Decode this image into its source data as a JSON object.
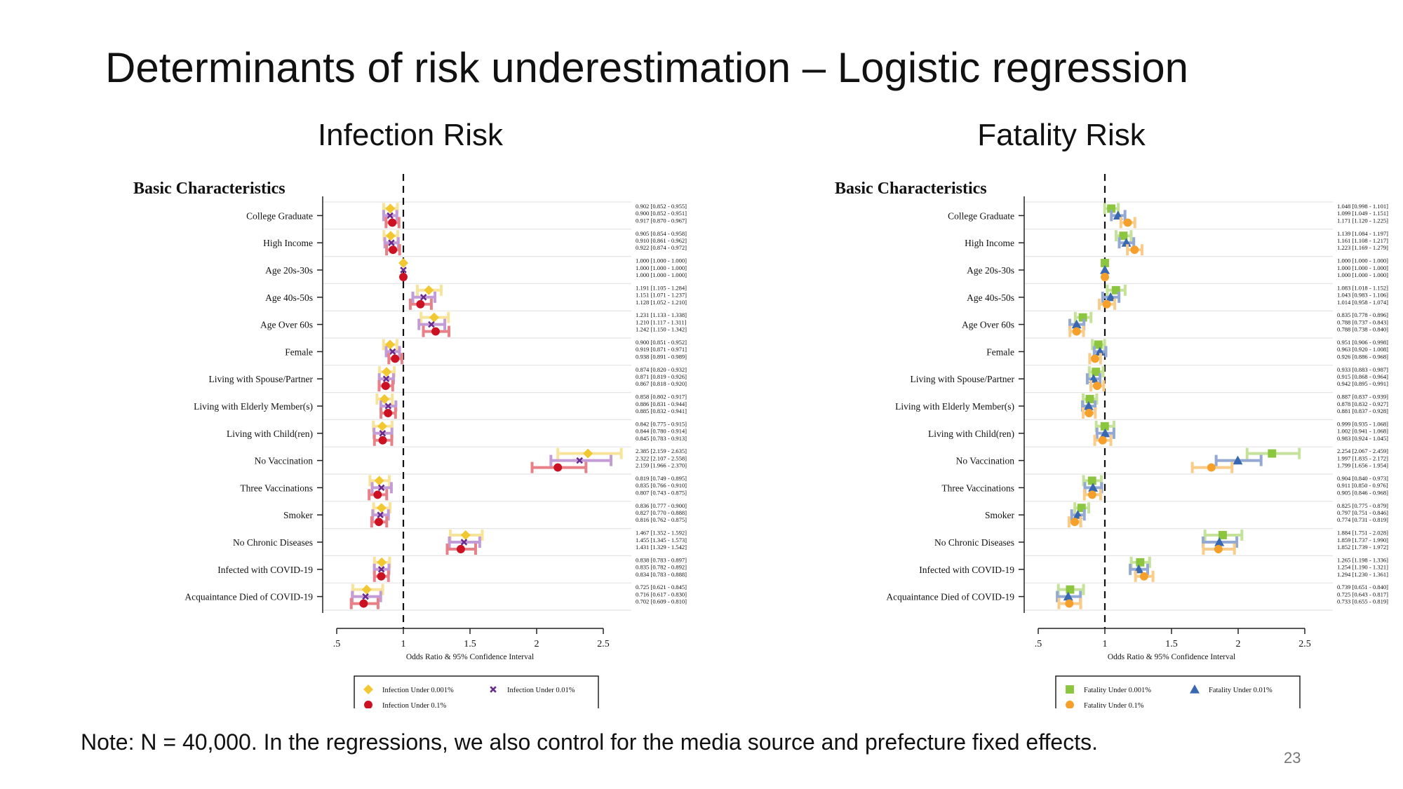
{
  "slide": {
    "title": "Determinants of risk underestimation – Logistic regression",
    "note": "Note: N = 40,000. In the regressions, we also control for the media source and prefecture fixed effects.",
    "page_number": "23"
  },
  "chart_data": [
    {
      "type": "forest",
      "title": "Infection Risk",
      "section_label": "Basic Characteristics",
      "xlabel": "Odds Ratio & 95% Confidence Interval",
      "xlim": [
        0.5,
        2.5
      ],
      "x_ticks": [
        ".5",
        "1",
        "1.5",
        "2",
        "2.5"
      ],
      "x_tick_values": [
        0.5,
        1,
        1.5,
        2,
        2.5
      ],
      "reference_line": 1,
      "legend_position": "bottom",
      "categories": [
        "College Graduate",
        "High Income",
        "Age 20s-30s",
        "Age 40s-50s",
        "Age Over 60s",
        "Female",
        "Living with Spouse/Partner",
        "Living with Elderly Member(s)",
        "Living with Child(ren)",
        "No Vaccination",
        "Three Vaccinations",
        "Smoker",
        "No Chronic Diseases",
        "Infected with COVID-19",
        "Acquaintance Died of COVID-19"
      ],
      "series": [
        {
          "name": "Infection Under 0.001%",
          "marker": "diamond",
          "color": "#f2c832",
          "ci_color": "#f8e39a",
          "or": [
            0.902,
            0.905,
            1.0,
            1.191,
            1.231,
            0.9,
            0.874,
            0.858,
            0.842,
            2.385,
            0.819,
            0.836,
            1.467,
            0.838,
            0.725
          ],
          "lo": [
            0.852,
            0.854,
            1.0,
            1.105,
            1.133,
            0.851,
            0.82,
            0.802,
            0.775,
            2.159,
            0.749,
            0.777,
            1.352,
            0.783,
            0.621
          ],
          "hi": [
            0.955,
            0.958,
            1.0,
            1.284,
            1.338,
            0.952,
            0.932,
            0.917,
            0.915,
            2.635,
            0.895,
            0.9,
            1.592,
            0.897,
            0.845
          ],
          "labels": [
            "0.902  [0.852 - 0.955]",
            "0.905  [0.854 - 0.958]",
            "1.000  [1.000 - 1.000]",
            "1.191  [1.105 - 1.284]",
            "1.231  [1.133 - 1.338]",
            "0.900  [0.851 - 0.952]",
            "0.874  [0.820 - 0.932]",
            "0.858  [0.802 - 0.917]",
            "0.842  [0.775 - 0.915]",
            "2.385  [2.159 - 2.635]",
            "0.819  [0.749 - 0.895]",
            "0.836  [0.777 - 0.900]",
            "1.467  [1.352 - 1.592]",
            "0.838  [0.783 - 0.897]",
            "0.725  [0.621 - 0.845]"
          ]
        },
        {
          "name": "Infection Under 0.01%",
          "marker": "x",
          "color": "#6a2c8c",
          "ci_color": "#c39bd6",
          "or": [
            0.9,
            0.91,
            1.0,
            1.151,
            1.21,
            0.919,
            0.871,
            0.886,
            0.844,
            2.322,
            0.835,
            0.827,
            1.455,
            0.835,
            0.716
          ],
          "lo": [
            0.852,
            0.861,
            1.0,
            1.071,
            1.117,
            0.871,
            0.819,
            0.831,
            0.78,
            2.107,
            0.766,
            0.77,
            1.345,
            0.782,
            0.617
          ],
          "hi": [
            0.951,
            0.962,
            1.0,
            1.237,
            1.311,
            0.971,
            0.926,
            0.944,
            0.914,
            2.558,
            0.91,
            0.888,
            1.573,
            0.892,
            0.83
          ],
          "labels": [
            "0.900  [0.852 - 0.951]",
            "0.910  [0.861 - 0.962]",
            "1.000  [1.000 - 1.000]",
            "1.151  [1.071 - 1.237]",
            "1.210  [1.117 - 1.311]",
            "0.919  [0.871 - 0.971]",
            "0.871  [0.819 - 0.926]",
            "0.886  [0.831 - 0.944]",
            "0.844  [0.780 - 0.914]",
            "2.322  [2.107 - 2.558]",
            "0.835  [0.766 - 0.910]",
            "0.827  [0.770 - 0.888]",
            "1.455  [1.345 - 1.573]",
            "0.835  [0.782 - 0.892]",
            "0.716  [0.617 - 0.830]"
          ]
        },
        {
          "name": "Infection Under 0.1%",
          "marker": "circle",
          "color": "#cc1122",
          "ci_color": "#e88088",
          "or": [
            0.917,
            0.922,
            1.0,
            1.128,
            1.242,
            0.938,
            0.867,
            0.885,
            0.845,
            2.159,
            0.807,
            0.816,
            1.431,
            0.834,
            0.702
          ],
          "lo": [
            0.87,
            0.874,
            1.0,
            1.052,
            1.15,
            0.891,
            0.818,
            0.832,
            0.783,
            1.966,
            0.743,
            0.762,
            1.329,
            0.783,
            0.609
          ],
          "hi": [
            0.967,
            0.972,
            1.0,
            1.21,
            1.342,
            0.989,
            0.92,
            0.941,
            0.913,
            2.37,
            0.875,
            0.875,
            1.542,
            0.888,
            0.81
          ],
          "labels": [
            "0.917  [0.870 - 0.967]",
            "0.922  [0.874 - 0.972]",
            "1.000  [1.000 - 1.000]",
            "1.128  [1.052 - 1.210]",
            "1.242  [1.150 - 1.342]",
            "0.938  [0.891 - 0.989]",
            "0.867  [0.818 - 0.920]",
            "0.885  [0.832 - 0.941]",
            "0.845  [0.783 - 0.913]",
            "2.159  [1.966 - 2.370]",
            "0.807  [0.743 - 0.875]",
            "0.816  [0.762 - 0.875]",
            "1.431  [1.329 - 1.542]",
            "0.834  [0.783 - 0.888]",
            "0.702  [0.609 - 0.810]"
          ]
        }
      ]
    },
    {
      "type": "forest",
      "title": "Fatality Risk",
      "section_label": "Basic Characteristics",
      "xlabel": "Odds Ratio & 95% Confidence Interval",
      "xlim": [
        0.5,
        2.5
      ],
      "x_ticks": [
        ".5",
        "1",
        "1.5",
        "2",
        "2.5"
      ],
      "x_tick_values": [
        0.5,
        1,
        1.5,
        2,
        2.5
      ],
      "reference_line": 1,
      "legend_position": "bottom",
      "categories": [
        "College Graduate",
        "High Income",
        "Age 20s-30s",
        "Age 40s-50s",
        "Age Over 60s",
        "Female",
        "Living with Spouse/Partner",
        "Living with Elderly Member(s)",
        "Living with Child(ren)",
        "No Vaccination",
        "Three Vaccinations",
        "Smoker",
        "No Chronic Diseases",
        "Infected with COVID-19",
        "Acquaintance Died of COVID-19"
      ],
      "series": [
        {
          "name": "Fatality Under 0.001%",
          "marker": "square",
          "color": "#8cc63e",
          "ci_color": "#c5e29a",
          "or": [
            1.048,
            1.139,
            1.0,
            1.083,
            0.835,
            0.951,
            0.933,
            0.887,
            0.999,
            2.254,
            0.904,
            0.825,
            1.884,
            1.265,
            0.739
          ],
          "lo": [
            0.998,
            1.084,
            1.0,
            1.018,
            0.778,
            0.906,
            0.883,
            0.837,
            0.935,
            2.067,
            0.84,
            0.775,
            1.751,
            1.198,
            0.651
          ],
          "hi": [
            1.101,
            1.197,
            1.0,
            1.152,
            0.896,
            0.998,
            0.987,
            0.939,
            1.068,
            2.459,
            0.973,
            0.879,
            2.028,
            1.336,
            0.84
          ],
          "labels": [
            "1.048  [0.998 - 1.101]",
            "1.139  [1.084 - 1.197]",
            "1.000  [1.000 - 1.000]",
            "1.083  [1.018 - 1.152]",
            "0.835  [0.778 - 0.896]",
            "0.951  [0.906 - 0.998]",
            "0.933  [0.883 - 0.987]",
            "0.887  [0.837 - 0.939]",
            "0.999  [0.935 - 1.068]",
            "2.254  [2.067 - 2.459]",
            "0.904  [0.840 - 0.973]",
            "0.825  [0.775 - 0.879]",
            "1.884  [1.751 - 2.028]",
            "1.265  [1.198 - 1.336]",
            "0.739  [0.651 - 0.840]"
          ]
        },
        {
          "name": "Fatality Under 0.01%",
          "marker": "triangle",
          "color": "#3a68b0",
          "ci_color": "#93a9d3",
          "or": [
            1.099,
            1.161,
            1.0,
            1.043,
            0.788,
            0.963,
            0.915,
            0.878,
            1.002,
            1.997,
            0.911,
            0.797,
            1.859,
            1.254,
            0.725
          ],
          "lo": [
            1.049,
            1.108,
            1.0,
            0.983,
            0.737,
            0.92,
            0.868,
            0.832,
            0.941,
            1.835,
            0.85,
            0.751,
            1.737,
            1.19,
            0.643
          ],
          "hi": [
            1.151,
            1.217,
            1.0,
            1.106,
            0.843,
            1.008,
            0.964,
            0.927,
            1.068,
            2.172,
            0.976,
            0.846,
            1.99,
            1.321,
            0.817
          ],
          "labels": [
            "1.099  [1.049 - 1.151]",
            "1.161  [1.108 - 1.217]",
            "1.000  [1.000 - 1.000]",
            "1.043  [0.983 - 1.106]",
            "0.788  [0.737 - 0.843]",
            "0.963  [0.920 - 1.008]",
            "0.915  [0.868 - 0.964]",
            "0.878  [0.832 - 0.927]",
            "1.002  [0.941 - 1.068]",
            "1.997  [1.835 - 2.172]",
            "0.911  [0.850 - 0.976]",
            "0.797  [0.751 - 0.846]",
            "1.859  [1.737 - 1.990]",
            "1.254  [1.190 - 1.321]",
            "0.725  [0.643 - 0.817]"
          ]
        },
        {
          "name": "Fatality Under 0.1%",
          "marker": "circle",
          "color": "#f5a02a",
          "ci_color": "#f9cc8a",
          "or": [
            1.171,
            1.223,
            1.0,
            1.014,
            0.788,
            0.926,
            0.942,
            0.881,
            0.983,
            1.799,
            0.905,
            0.774,
            1.852,
            1.294,
            0.733
          ],
          "lo": [
            1.12,
            1.169,
            1.0,
            0.958,
            0.738,
            0.886,
            0.895,
            0.837,
            0.924,
            1.656,
            0.846,
            0.731,
            1.739,
            1.23,
            0.655
          ],
          "hi": [
            1.225,
            1.279,
            1.0,
            1.074,
            0.84,
            0.968,
            0.991,
            0.928,
            1.045,
            1.954,
            0.968,
            0.819,
            1.972,
            1.361,
            0.819
          ],
          "labels": [
            "1.171  [1.120 - 1.225]",
            "1.223  [1.169 - 1.279]",
            "1.000  [1.000 - 1.000]",
            "1.014  [0.958 - 1.074]",
            "0.788  [0.738 - 0.840]",
            "0.926  [0.886 - 0.968]",
            "0.942  [0.895 - 0.991]",
            "0.881  [0.837 - 0.928]",
            "0.983  [0.924 - 1.045]",
            "1.799  [1.656 - 1.954]",
            "0.905  [0.846 - 0.968]",
            "0.774  [0.731 - 0.819]",
            "1.852  [1.739 - 1.972]",
            "1.294  [1.230 - 1.361]",
            "0.733  [0.655 - 0.819]"
          ]
        }
      ]
    }
  ]
}
